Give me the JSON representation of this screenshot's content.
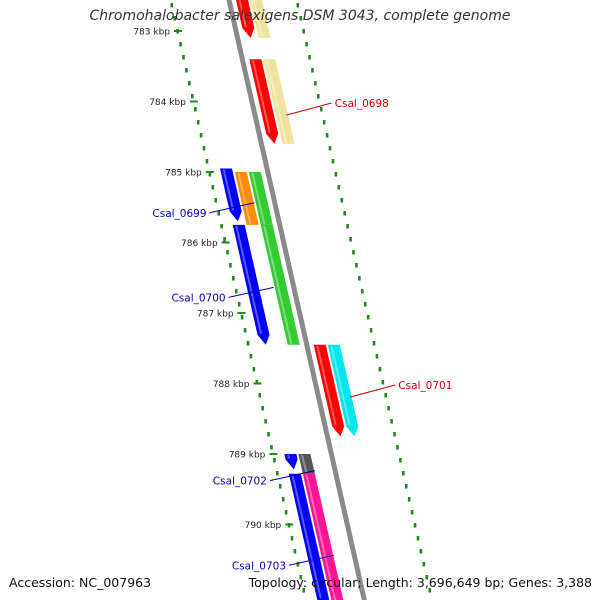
{
  "title": "Chromohalobacter salexigens DSM 3043, complete genome",
  "footer": {
    "accession": "Accession: NC_007963",
    "summary": "Topology: circular; Length: 3,696,649 bp; Genes: 3,388"
  },
  "colors": {
    "backbone": "#8a8a8a",
    "tick": "#1f8a1f",
    "forward_label": "#cc0000",
    "reverse_label": "#0000bb",
    "red": "#ff0000",
    "pale_yellow": "#efe3a0",
    "orange": "#ff8c00",
    "green": "#33cc33",
    "blue": "#0000ff",
    "cyan": "#00e5ee",
    "dark_gray": "#555555",
    "pink": "#ff1493"
  },
  "ticks": [
    {
      "kbp": 783,
      "label": "783 kbp"
    },
    {
      "kbp": 784,
      "label": "784 kbp"
    },
    {
      "kbp": 785,
      "label": "785 kbp"
    },
    {
      "kbp": 786,
      "label": "786 kbp"
    },
    {
      "kbp": 787,
      "label": "787 kbp"
    },
    {
      "kbp": 788,
      "label": "788 kbp"
    },
    {
      "kbp": 789,
      "label": "789 kbp"
    },
    {
      "kbp": 790,
      "label": "790 kbp"
    }
  ],
  "features": [
    {
      "strand": "+",
      "lane": 0,
      "start_kbp": 782.3,
      "end_kbp": 783.1,
      "color": "red",
      "arrow": true
    },
    {
      "strand": "+",
      "lane": 1,
      "start_kbp": 782.3,
      "end_kbp": 783.1,
      "color": "pale_yellow",
      "arrow": false
    },
    {
      "strand": "+",
      "lane": 0,
      "start_kbp": 783.4,
      "end_kbp": 784.6,
      "color": "red",
      "arrow": true
    },
    {
      "strand": "+",
      "lane": 1,
      "start_kbp": 783.4,
      "end_kbp": 784.6,
      "color": "pale_yellow",
      "arrow": false
    },
    {
      "strand": "-",
      "lane": 1,
      "start_kbp": 785.0,
      "end_kbp": 785.75,
      "color": "orange",
      "arrow": false
    },
    {
      "strand": "-",
      "lane": 0,
      "start_kbp": 785.0,
      "end_kbp": 785.75,
      "color": "green",
      "arrow": false
    },
    {
      "strand": "-",
      "lane": 2,
      "start_kbp": 784.95,
      "end_kbp": 785.7,
      "color": "blue",
      "arrow": true
    },
    {
      "strand": "-",
      "lane": 0,
      "start_kbp": 785.75,
      "end_kbp": 787.45,
      "color": "green",
      "arrow": false
    },
    {
      "strand": "-",
      "lane": 2,
      "start_kbp": 785.75,
      "end_kbp": 787.45,
      "color": "blue",
      "arrow": true
    },
    {
      "strand": "+",
      "lane": 0,
      "start_kbp": 787.45,
      "end_kbp": 788.75,
      "color": "red",
      "arrow": true
    },
    {
      "strand": "+",
      "lane": 1,
      "start_kbp": 787.45,
      "end_kbp": 788.75,
      "color": "cyan",
      "arrow": true
    },
    {
      "strand": "-",
      "lane": 1,
      "start_kbp": 789.0,
      "end_kbp": 789.28,
      "color": "dark_gray",
      "arrow": false
    },
    {
      "strand": "-",
      "lane": 2,
      "start_kbp": 789.0,
      "end_kbp": 789.22,
      "color": "blue",
      "arrow": true
    },
    {
      "strand": "-",
      "lane": 1,
      "start_kbp": 789.28,
      "end_kbp": 791.2,
      "color": "pink",
      "arrow": false
    },
    {
      "strand": "-",
      "lane": 2,
      "start_kbp": 789.28,
      "end_kbp": 791.2,
      "color": "blue",
      "arrow": true
    }
  ],
  "gene_labels": [
    {
      "text": "Csal_0698",
      "side": "right",
      "kbp": 784.05,
      "strand": "forward"
    },
    {
      "text": "Csal_0699",
      "side": "left",
      "kbp": 785.55,
      "strand": "reverse"
    },
    {
      "text": "Csal_0700",
      "side": "left",
      "kbp": 786.75,
      "strand": "reverse"
    },
    {
      "text": "Csal_0701",
      "side": "right",
      "kbp": 788.05,
      "strand": "forward"
    },
    {
      "text": "Csal_0702",
      "side": "left",
      "kbp": 789.35,
      "strand": "reverse"
    },
    {
      "text": "Csal_0703",
      "side": "left",
      "kbp": 790.55,
      "strand": "reverse"
    }
  ]
}
